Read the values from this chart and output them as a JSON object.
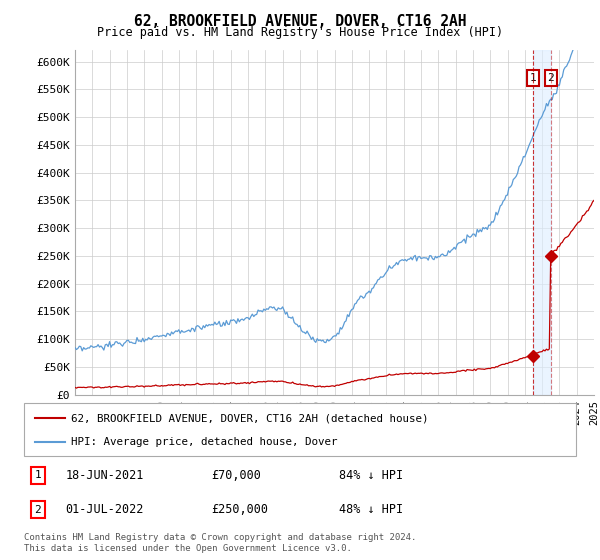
{
  "title": "62, BROOKFIELD AVENUE, DOVER, CT16 2AH",
  "subtitle": "Price paid vs. HM Land Registry's House Price Index (HPI)",
  "ylim": [
    0,
    620000
  ],
  "yticks": [
    0,
    50000,
    100000,
    150000,
    200000,
    250000,
    300000,
    350000,
    400000,
    450000,
    500000,
    550000,
    600000
  ],
  "ytick_labels": [
    "£0",
    "£50K",
    "£100K",
    "£150K",
    "£200K",
    "£250K",
    "£300K",
    "£350K",
    "£400K",
    "£450K",
    "£500K",
    "£550K",
    "£600K"
  ],
  "hpi_color": "#5B9BD5",
  "price_color": "#C00000",
  "t1": 2021.46,
  "t2": 2022.5,
  "price1": 70000,
  "price2": 250000,
  "legend_line1": "62, BROOKFIELD AVENUE, DOVER, CT16 2AH (detached house)",
  "legend_line2": "HPI: Average price, detached house, Dover",
  "annotation1_date": "18-JUN-2021",
  "annotation1_price": "£70,000",
  "annotation1_pct": "84% ↓ HPI",
  "annotation2_date": "01-JUL-2022",
  "annotation2_price": "£250,000",
  "annotation2_pct": "48% ↓ HPI",
  "footer": "Contains HM Land Registry data © Crown copyright and database right 2024.\nThis data is licensed under the Open Government Licence v3.0.",
  "background_color": "#ffffff",
  "grid_color": "#cccccc",
  "xstart": 1995,
  "xend": 2025
}
